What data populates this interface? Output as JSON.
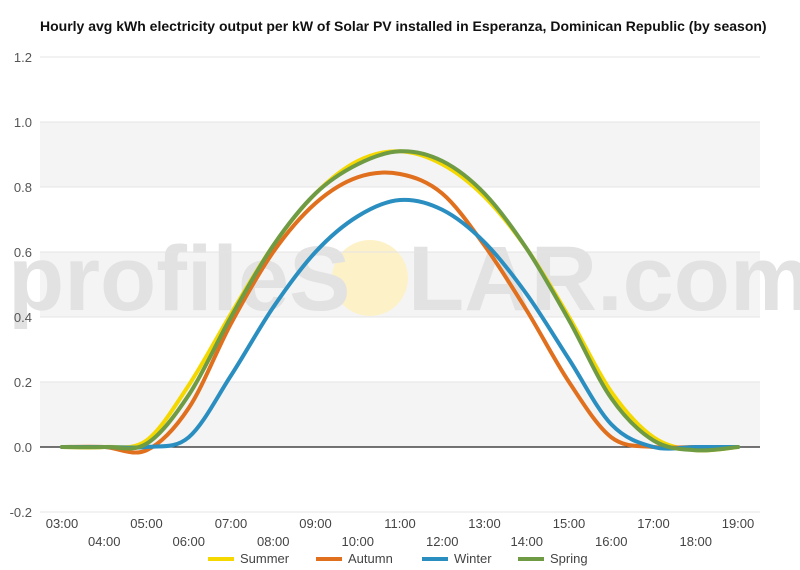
{
  "chart_data": {
    "type": "line",
    "title": "Hourly avg kWh electricity output per kW of Solar PV installed in Esperanza, Dominican Republic (by season)",
    "xlabel": "",
    "ylabel": "",
    "watermark": {
      "prefix": "profileS",
      "middle": "LAR.com"
    },
    "x": [
      3,
      4,
      5,
      6,
      7,
      8,
      9,
      10,
      11,
      12,
      13,
      14,
      15,
      16,
      17,
      18,
      19
    ],
    "x_tick_labels": [
      "03:00",
      "04:00",
      "05:00",
      "06:00",
      "07:00",
      "08:00",
      "09:00",
      "10:00",
      "11:00",
      "12:00",
      "13:00",
      "14:00",
      "15:00",
      "16:00",
      "17:00",
      "18:00",
      "19:00"
    ],
    "y_tick_labels": [
      "-0.2",
      "0.0",
      "0.2",
      "0.4",
      "0.6",
      "0.8",
      "1.0",
      "1.2"
    ],
    "ylim": [
      -0.2,
      1.2
    ],
    "grid": true,
    "legend_position": "bottom",
    "series": [
      {
        "name": "Summer",
        "color": "#f5d800",
        "values": [
          0.0,
          0.0,
          0.02,
          0.19,
          0.41,
          0.62,
          0.78,
          0.88,
          0.91,
          0.87,
          0.77,
          0.61,
          0.4,
          0.17,
          0.03,
          -0.01,
          0.0
        ]
      },
      {
        "name": "Autumn",
        "color": "#e06f1e",
        "values": [
          0.0,
          0.0,
          -0.01,
          0.12,
          0.38,
          0.6,
          0.75,
          0.83,
          0.84,
          0.78,
          0.62,
          0.42,
          0.2,
          0.03,
          0.0,
          0.0,
          0.0
        ]
      },
      {
        "name": "Winter",
        "color": "#2a8fc0",
        "values": [
          0.0,
          0.0,
          0.0,
          0.03,
          0.22,
          0.43,
          0.6,
          0.71,
          0.76,
          0.73,
          0.63,
          0.47,
          0.27,
          0.07,
          0.0,
          0.0,
          0.0
        ]
      },
      {
        "name": "Spring",
        "color": "#6e9b44",
        "values": [
          0.0,
          0.0,
          0.01,
          0.16,
          0.4,
          0.62,
          0.78,
          0.87,
          0.91,
          0.88,
          0.78,
          0.61,
          0.39,
          0.15,
          0.02,
          -0.01,
          0.0
        ]
      }
    ]
  }
}
